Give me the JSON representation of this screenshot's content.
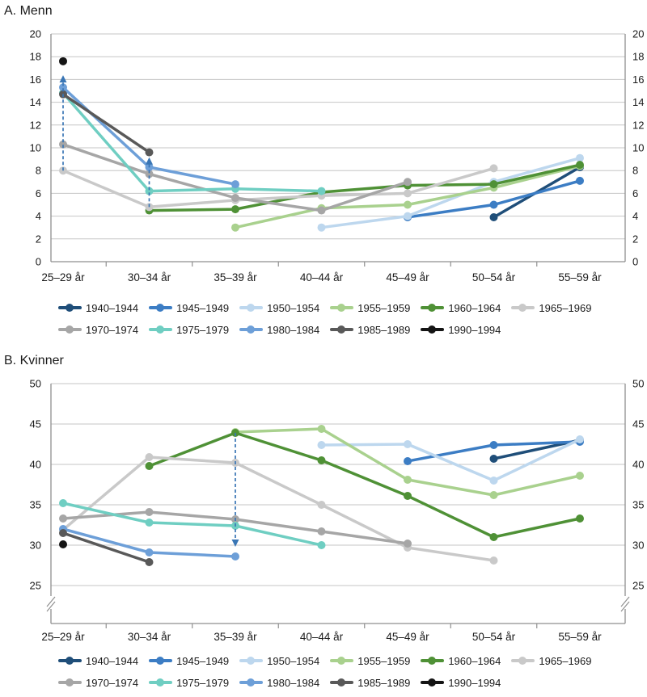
{
  "colors": {
    "arrow": "#3A76B5"
  },
  "cohorts": [
    {
      "label": "1940–1944",
      "color": "#1F4E79"
    },
    {
      "label": "1945–1949",
      "color": "#3C7DC4"
    },
    {
      "label": "1950–1954",
      "color": "#BDD7EE"
    },
    {
      "label": "1955–1959",
      "color": "#A9D18E"
    },
    {
      "label": "1960–1964",
      "color": "#4F9136"
    },
    {
      "label": "1965–1969",
      "color": "#C9C9C9"
    },
    {
      "label": "1970–1974",
      "color": "#A6A6A6"
    },
    {
      "label": "1975–1979",
      "color": "#6FCEC2"
    },
    {
      "label": "1980–1984",
      "color": "#6D9FD8"
    },
    {
      "label": "1985–1989",
      "color": "#595959"
    },
    {
      "label": "1990–1994",
      "color": "#141414"
    }
  ],
  "chart_data": [
    {
      "type": "line",
      "panel": "A",
      "title": "A. Menn",
      "x_categories": [
        "25–29 år",
        "30–34 år",
        "35–39 år",
        "40–44 år",
        "45–49 år",
        "50–54 år",
        "55–59 år"
      ],
      "ylim": [
        0,
        20
      ],
      "ytick_step": 2,
      "axis_break": false,
      "grid": true,
      "legend_position": "bottom",
      "series": [
        {
          "name": "1940–1944",
          "values": [
            null,
            null,
            null,
            null,
            null,
            3.9,
            8.3
          ]
        },
        {
          "name": "1945–1949",
          "values": [
            null,
            null,
            null,
            null,
            3.9,
            5.0,
            7.1
          ]
        },
        {
          "name": "1950–1954",
          "values": [
            null,
            null,
            null,
            3.0,
            4.0,
            7.0,
            9.1
          ]
        },
        {
          "name": "1955–1959",
          "values": [
            null,
            null,
            3.0,
            4.7,
            5.0,
            6.5,
            8.4
          ]
        },
        {
          "name": "1960–1964",
          "values": [
            null,
            4.5,
            4.6,
            6.1,
            6.7,
            6.8,
            8.5
          ]
        },
        {
          "name": "1965–1969",
          "values": [
            8.0,
            4.8,
            5.4,
            5.8,
            6.0,
            8.2,
            null
          ]
        },
        {
          "name": "1970–1974",
          "values": [
            10.3,
            7.7,
            5.6,
            4.5,
            7.0,
            null,
            null
          ]
        },
        {
          "name": "1975–1979",
          "values": [
            14.8,
            6.2,
            6.4,
            6.2,
            null,
            null,
            null
          ]
        },
        {
          "name": "1980–1984",
          "values": [
            15.3,
            8.3,
            6.8,
            null,
            null,
            null,
            null
          ]
        },
        {
          "name": "1985–1989",
          "values": [
            14.7,
            9.6,
            null,
            null,
            null,
            null,
            null
          ]
        },
        {
          "name": "1990–1994",
          "values": [
            17.6,
            null,
            null,
            null,
            null,
            null,
            null
          ]
        }
      ],
      "arrows": [
        {
          "x": "25–29 år",
          "from": 8.0,
          "to": 16.3,
          "direction": "up"
        },
        {
          "x": "30–34 år",
          "from": 4.8,
          "to": 9.1,
          "direction": "up"
        }
      ]
    },
    {
      "type": "line",
      "panel": "B",
      "title": "B. Kvinner",
      "x_categories": [
        "25–29 år",
        "30–34 år",
        "35–39 år",
        "40–44 år",
        "45–49 år",
        "50–54 år",
        "55–59 år"
      ],
      "ylim": [
        25,
        50
      ],
      "ytick_step": 5,
      "axis_break": true,
      "grid": true,
      "legend_position": "bottom",
      "series": [
        {
          "name": "1940–1944",
          "values": [
            null,
            null,
            null,
            null,
            null,
            40.7,
            43.0
          ]
        },
        {
          "name": "1945–1949",
          "values": [
            null,
            null,
            null,
            null,
            40.4,
            42.4,
            42.8
          ]
        },
        {
          "name": "1950–1954",
          "values": [
            null,
            null,
            null,
            42.4,
            42.5,
            38.0,
            43.1
          ]
        },
        {
          "name": "1955–1959",
          "values": [
            null,
            null,
            44.0,
            44.4,
            38.1,
            36.2,
            38.6
          ]
        },
        {
          "name": "1960–1964",
          "values": [
            null,
            39.8,
            43.9,
            40.5,
            36.1,
            31.0,
            33.3
          ]
        },
        {
          "name": "1965–1969",
          "values": [
            31.9,
            40.9,
            40.2,
            35.0,
            29.7,
            28.1,
            null
          ]
        },
        {
          "name": "1970–1974",
          "values": [
            33.3,
            34.1,
            33.2,
            31.7,
            30.2,
            null,
            null
          ]
        },
        {
          "name": "1975–1979",
          "values": [
            35.2,
            32.8,
            32.4,
            30.0,
            null,
            null,
            null
          ]
        },
        {
          "name": "1980–1984",
          "values": [
            32.0,
            29.1,
            28.6,
            null,
            null,
            null,
            null
          ]
        },
        {
          "name": "1985–1989",
          "values": [
            31.5,
            27.9,
            null,
            null,
            null,
            null,
            null
          ]
        },
        {
          "name": "1990–1994",
          "values": [
            30.1,
            null,
            null,
            null,
            null,
            null,
            null
          ]
        }
      ],
      "arrows": [
        {
          "x": "35–39 år",
          "from": 43.9,
          "to": 29.9,
          "direction": "down"
        }
      ]
    }
  ]
}
